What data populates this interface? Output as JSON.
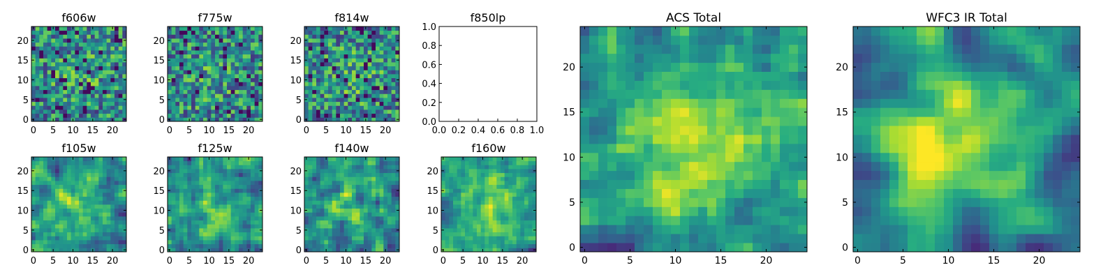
{
  "figure": {
    "background": "#ffffff"
  },
  "chart_data": [
    {
      "type": "heatmap",
      "id": "f606w",
      "title": "f606w",
      "grid": 24,
      "ylim": [
        0,
        24
      ],
      "xticks": [
        0,
        5,
        10,
        15,
        20
      ],
      "yticks": [
        0,
        5,
        10,
        15,
        20
      ],
      "empty": false,
      "colormap": "viridis",
      "seed": 11,
      "smooth": 0,
      "center": 0.12
    },
    {
      "type": "heatmap",
      "id": "f775w",
      "title": "f775w",
      "grid": 24,
      "ylim": [
        0,
        24
      ],
      "xticks": [
        0,
        5,
        10,
        15,
        20
      ],
      "yticks": [
        0,
        5,
        10,
        15,
        20
      ],
      "empty": false,
      "colormap": "viridis",
      "seed": 23,
      "smooth": 0,
      "center": 0.1
    },
    {
      "type": "heatmap",
      "id": "f814w",
      "title": "f814w",
      "grid": 24,
      "ylim": [
        0,
        24
      ],
      "xticks": [
        0,
        5,
        10,
        15,
        20
      ],
      "yticks": [
        0,
        5,
        10,
        15,
        20
      ],
      "empty": false,
      "colormap": "viridis",
      "seed": 37,
      "smooth": 0,
      "center": 0.15
    },
    {
      "type": "line",
      "id": "f850lp",
      "title": "f850lp",
      "empty": true,
      "xlim": [
        0,
        1
      ],
      "ylim": [
        0,
        1
      ],
      "xtick_labels": [
        "0.0",
        "0.2",
        "0.4",
        "0.6",
        "0.8",
        "1.0"
      ],
      "ytick_labels": [
        "0.0",
        "0.2",
        "0.4",
        "0.6",
        "0.8",
        "1.0"
      ]
    },
    {
      "type": "heatmap",
      "id": "f105w",
      "title": "f105w",
      "grid": 24,
      "ylim": [
        0,
        24
      ],
      "xticks": [
        0,
        5,
        10,
        15,
        20
      ],
      "yticks": [
        0,
        5,
        10,
        15,
        20
      ],
      "empty": false,
      "colormap": "viridis",
      "seed": 51,
      "smooth": 1,
      "center": 0.3
    },
    {
      "type": "heatmap",
      "id": "f125w",
      "title": "f125w",
      "grid": 24,
      "ylim": [
        0,
        24
      ],
      "xticks": [
        0,
        5,
        10,
        15,
        20
      ],
      "yticks": [
        0,
        5,
        10,
        15,
        20
      ],
      "empty": false,
      "colormap": "viridis",
      "seed": 67,
      "smooth": 1,
      "center": 0.2
    },
    {
      "type": "heatmap",
      "id": "f140w",
      "title": "f140w",
      "grid": 24,
      "ylim": [
        0,
        24
      ],
      "xticks": [
        0,
        5,
        10,
        15,
        20
      ],
      "yticks": [
        0,
        5,
        10,
        15,
        20
      ],
      "empty": false,
      "colormap": "viridis",
      "seed": 79,
      "smooth": 1,
      "center": 0.2
    },
    {
      "type": "heatmap",
      "id": "f160w",
      "title": "f160w",
      "grid": 24,
      "ylim": [
        0,
        24
      ],
      "xticks": [
        0,
        5,
        10,
        15,
        20
      ],
      "yticks": [
        0,
        5,
        10,
        15,
        20
      ],
      "empty": false,
      "colormap": "viridis",
      "seed": 83,
      "smooth": 1,
      "center": 0.25
    },
    {
      "type": "heatmap",
      "id": "acs-total",
      "title": "ACS Total",
      "grid": 25,
      "ylim": [
        0,
        25
      ],
      "xticks": [
        0,
        5,
        10,
        15,
        20
      ],
      "yticks": [
        0,
        5,
        10,
        15,
        20
      ],
      "empty": false,
      "colormap": "viridis",
      "seed": 97,
      "smooth": 1,
      "center": 0.35
    },
    {
      "type": "heatmap",
      "id": "wfc3-ir-total",
      "title": "WFC3 IR Total",
      "grid": 25,
      "ylim": [
        0,
        25
      ],
      "xticks": [
        0,
        5,
        10,
        15,
        20
      ],
      "yticks": [
        0,
        5,
        10,
        15,
        20
      ],
      "empty": false,
      "colormap": "viridis",
      "seed": 101,
      "smooth": 2,
      "center": 0.55
    }
  ]
}
